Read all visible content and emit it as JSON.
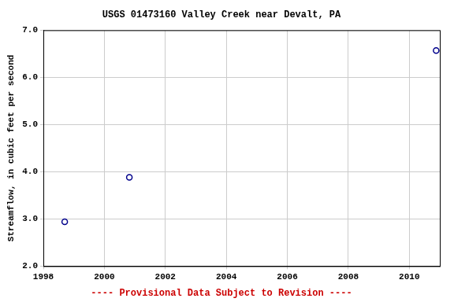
{
  "chart_data": {
    "type": "scatter",
    "title": "USGS 01473160 Valley Creek near Devalt, PA",
    "y_label": "Streamflow, in cubic feet per second",
    "annotation": "---- Provisional Data Subject to Revision ----",
    "x": [
      1998.7,
      2000.82,
      2010.88
    ],
    "values": [
      2.94,
      3.88,
      6.57
    ],
    "color": "#00008b",
    "marker": "open circle",
    "xlim": [
      1998,
      2011
    ],
    "xticks": [
      1998,
      2000,
      2002,
      2004,
      2006,
      2008,
      2010
    ],
    "ylim": [
      2,
      7
    ],
    "yticks": [
      {
        "value": 2,
        "label": "2.0"
      },
      {
        "value": 3,
        "label": "3.0"
      },
      {
        "value": 4,
        "label": "4.0"
      },
      {
        "value": 5,
        "label": "5.0"
      },
      {
        "value": 6,
        "label": "6.0"
      },
      {
        "value": 7,
        "label": "7.0"
      }
    ],
    "grid": true
  }
}
